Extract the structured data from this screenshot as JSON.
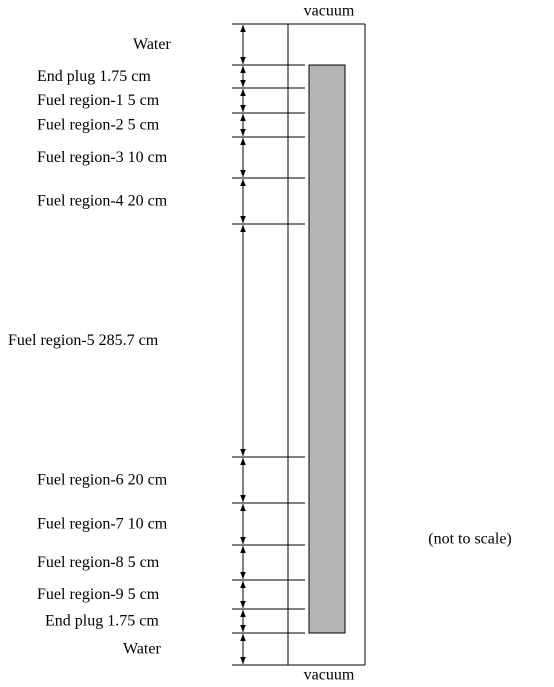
{
  "top_label": "vacuum",
  "bottom_label": "vacuum",
  "note": "(not to scale)",
  "regions": [
    "Water",
    "End plug 1.75 cm",
    "Fuel region-1 5 cm",
    "Fuel region-2 5 cm",
    "Fuel region-3 10 cm",
    "Fuel region-4 20 cm",
    "Fuel region-5  285.7 cm",
    "Fuel region-6 20 cm",
    "Fuel region-7 10 cm",
    "Fuel region-8 5 cm",
    "Fuel region-9 5 cm",
    "End plug 1.75 cm",
    "Water"
  ]
}
